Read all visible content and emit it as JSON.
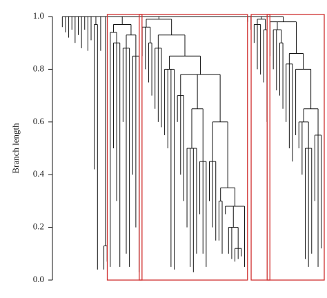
{
  "chart_data": {
    "type": "dendrogram",
    "ylabel": "Branch length",
    "ylim": [
      0,
      1.0
    ],
    "yticks": [
      {
        "value": 0,
        "label": "0.0"
      },
      {
        "value": 0.2,
        "label": "0.2"
      },
      {
        "value": 0.4,
        "label": "0.4"
      },
      {
        "value": 0.6,
        "label": "0.6"
      },
      {
        "value": 0.8,
        "label": "0.8"
      },
      {
        "value": 1.0,
        "label": "1.0"
      }
    ],
    "line_color": "#111111",
    "box_color": "#d0302f",
    "boxed": [
      13,
      14,
      17,
      18
    ],
    "tree": {
      "h": 1.0,
      "c": [
        0.96,
        0.94,
        0.92,
        0.95,
        0.9,
        0.93,
        0.88,
        0.95,
        0.87,
        0.91,
        {
          "h": 0.97,
          "c": [
            0.42,
            0.04
          ]
        },
        0.87,
        {
          "h": 0.13,
          "c": [
            0.04,
            0.07
          ]
        },
        {
          "h": 0.99,
          "c": [
            {
              "h": 0.97,
              "c": [
                {
                  "h": 0.94,
                  "c": [
                    0.05,
                    {
                      "h": 0.9,
                      "c": [
                        0.5,
                        0.3,
                        0.05
                      ]
                    }
                  ]
                },
                {
                  "h": 0.93,
                  "c": [
                    {
                      "h": 0.88,
                      "c": [
                        0.6,
                        0.1,
                        0.05
                      ]
                    },
                    {
                      "h": 0.85,
                      "c": [
                        0.4,
                        0.2,
                        0.03
                      ]
                    }
                  ]
                }
              ]
            }
          ]
        },
        {
          "h": 0.99,
          "c": [
            {
              "h": 0.96,
              "c": [
                0.85,
                0.8,
                {
                  "h": 0.9,
                  "c": [
                    0.75,
                    0.7
                  ]
                }
              ]
            },
            {
              "h": 0.93,
              "c": [
                {
                  "h": 0.88,
                  "c": [
                    0.65,
                    0.6,
                    0.58
                  ]
                },
                {
                  "h": 0.85,
                  "c": [
                    {
                      "h": 0.8,
                      "c": [
                        0.55,
                        0.5,
                        0.05,
                        0.04
                      ]
                    },
                    {
                      "h": 0.78,
                      "c": [
                        {
                          "h": 0.7,
                          "c": [
                            0.6,
                            0.4,
                            0.3
                          ]
                        },
                        {
                          "h": 0.65,
                          "c": [
                            {
                              "h": 0.5,
                              "c": [
                                0.2,
                                0.05,
                                0.03,
                                0.1
                              ]
                            },
                            {
                              "h": 0.45,
                              "c": [
                                0.25,
                                0.1,
                                0.05
                              ]
                            }
                          ]
                        },
                        {
                          "h": 0.6,
                          "c": [
                            {
                              "h": 0.45,
                              "c": [
                                0.3,
                                0.2,
                                0.15
                              ]
                            },
                            {
                              "h": 0.35,
                              "c": [
                                {
                                  "h": 0.3,
                                  "c": [
                                    0.15,
                                    0.1
                                  ]
                                },
                                {
                                  "h": 0.28,
                                  "c": [
                                    0.25,
                                    {
                                      "h": 0.2,
                                      "c": [
                                        0.1,
                                        0.08,
                                        {
                                          "h": 0.12,
                                          "c": [
                                            0.07,
                                            0.08,
                                            0.09
                                          ]
                                        }
                                      ]
                                    },
                                    0.05
                                  ]
                                }
                              ]
                            }
                          ]
                        }
                      ]
                    }
                  ]
                }
              ]
            }
          ]
        },
        0.98,
        0.95,
        {
          "h": 0.99,
          "c": [
            {
              "h": 0.97,
              "c": [
                0.9,
                0.8,
                0.78
              ]
            },
            {
              "h": 0.95,
              "c": [
                0.75,
                0.6
              ]
            }
          ]
        },
        {
          "h": 0.98,
          "c": [
            0.85,
            {
              "h": 0.95,
              "c": [
                0.8,
                0.72,
                {
                  "h": 0.9,
                  "c": [
                    0.7,
                    0.65
                  ]
                }
              ]
            },
            {
              "h": 0.86,
              "c": [
                {
                  "h": 0.82,
                  "c": [
                    0.6,
                    0.5,
                    0.45
                  ]
                },
                {
                  "h": 0.8,
                  "c": [
                    0.55,
                    {
                      "h": 0.65,
                      "c": [
                        {
                          "h": 0.6,
                          "c": [
                            0.5,
                            0.4,
                            {
                              "h": 0.5,
                              "c": [
                                0.08,
                                0.05,
                                0.1
                              ]
                            }
                          ]
                        },
                        {
                          "h": 0.55,
                          "c": [
                            0.3,
                            0.05,
                            0.12
                          ]
                        }
                      ]
                    }
                  ]
                }
              ]
            }
          ]
        }
      ]
    }
  }
}
